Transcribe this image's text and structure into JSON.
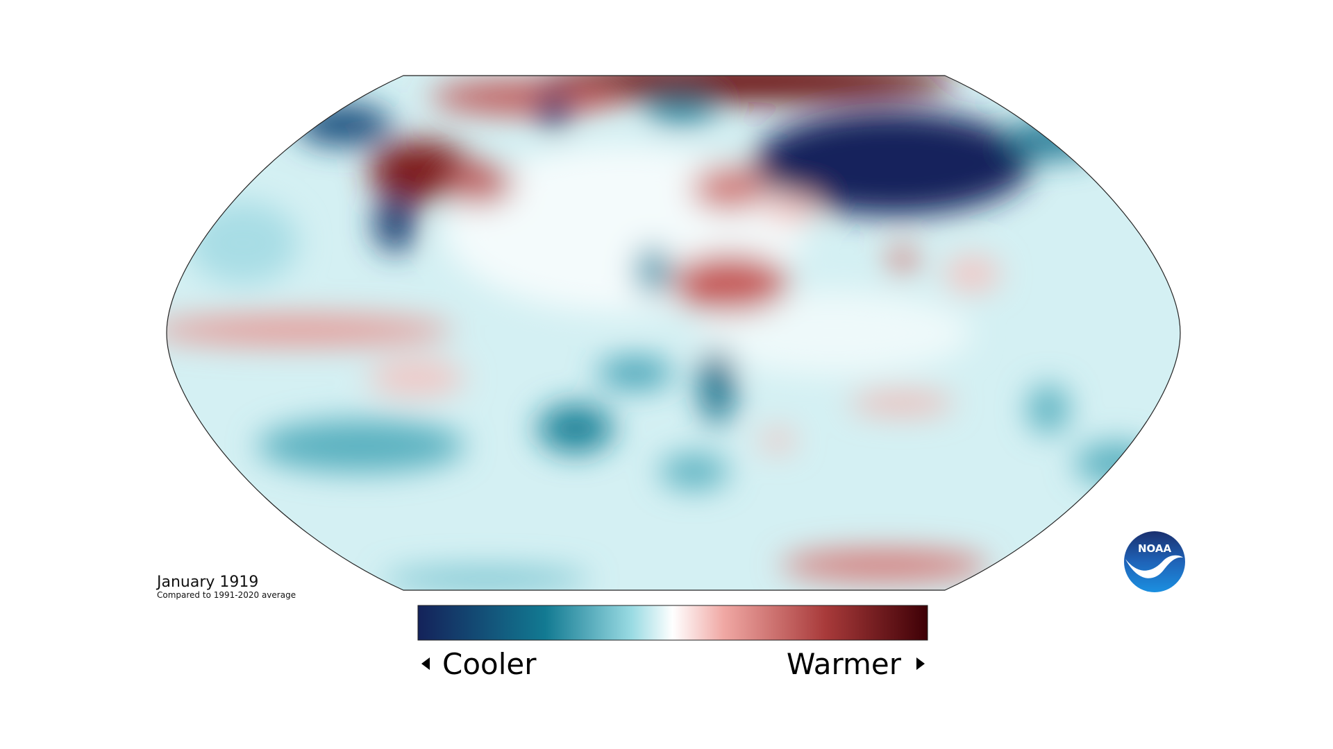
{
  "map": {
    "title": "January 1919",
    "subtitle": "Compared to 1991-2020 average"
  },
  "legend": {
    "low": "Cooler",
    "high": "Warmer"
  },
  "logo": {
    "text": "NOAA"
  }
}
